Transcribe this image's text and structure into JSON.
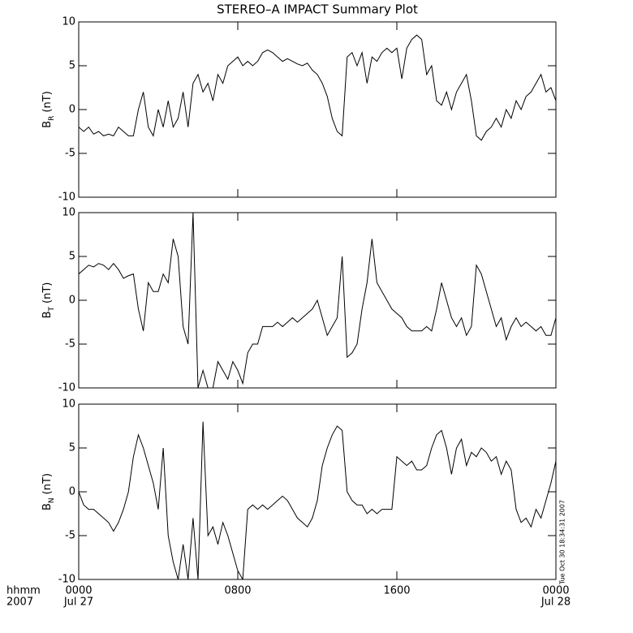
{
  "footer_timestamp": "Tue Oct 30 18:34:31 2007",
  "chart_data": [
    {
      "type": "line",
      "title": "STEREO–A IMPACT Summary Plot",
      "ylabel_parts": [
        "B",
        "R",
        "(nT)"
      ],
      "xlim": [
        0,
        24
      ],
      "ylim": [
        -10,
        10
      ],
      "yticks": [
        -10,
        -5,
        0,
        5,
        10
      ],
      "color": "#000000",
      "x": [
        0,
        0.25,
        0.5,
        0.75,
        1,
        1.25,
        1.5,
        1.75,
        2,
        2.25,
        2.5,
        2.75,
        3,
        3.25,
        3.5,
        3.75,
        4,
        4.25,
        4.5,
        4.75,
        5,
        5.25,
        5.5,
        5.75,
        6,
        6.25,
        6.5,
        6.75,
        7,
        7.25,
        7.5,
        7.75,
        8,
        8.25,
        8.5,
        8.75,
        9,
        9.25,
        9.5,
        9.75,
        10,
        10.25,
        10.5,
        10.75,
        11,
        11.25,
        11.5,
        11.75,
        12,
        12.25,
        12.5,
        12.75,
        13,
        13.25,
        13.5,
        13.75,
        14,
        14.25,
        14.5,
        14.75,
        15,
        15.25,
        15.5,
        15.75,
        16,
        16.25,
        16.5,
        16.75,
        17,
        17.25,
        17.5,
        17.75,
        18,
        18.25,
        18.5,
        18.75,
        19,
        19.25,
        19.5,
        19.75,
        20,
        20.25,
        20.5,
        20.75,
        21,
        21.25,
        21.5,
        21.75,
        22,
        22.25,
        22.5,
        22.75,
        23,
        23.25,
        23.5,
        23.75,
        24
      ],
      "values": [
        -2,
        -2.5,
        -2,
        -2.8,
        -2.5,
        -3,
        -2.8,
        -3,
        -2,
        -2.5,
        -3,
        -3,
        0,
        2,
        -2,
        -3,
        0,
        -2,
        1,
        -2,
        -1,
        2,
        -2,
        3,
        4,
        2,
        3,
        1,
        4,
        3,
        5,
        5.5,
        6,
        5,
        5.5,
        5,
        5.5,
        6.5,
        6.8,
        6.5,
        6,
        5.5,
        5.8,
        5.5,
        5.2,
        5,
        5.3,
        4.5,
        4,
        3,
        1.5,
        -1,
        -2.5,
        -3,
        6,
        6.5,
        5,
        6.5,
        3,
        6,
        5.5,
        6.5,
        7,
        6.5,
        7,
        3.5,
        7,
        8,
        8.5,
        8,
        4,
        5,
        1,
        0.5,
        2,
        0,
        2,
        3,
        4,
        1,
        -3,
        -3.5,
        -2.5,
        -2,
        -1,
        -2,
        0,
        -1,
        1,
        0,
        1.5,
        2,
        3,
        4,
        2,
        2.5,
        1
      ]
    },
    {
      "type": "line",
      "ylabel_parts": [
        "B",
        "T",
        "(nT)"
      ],
      "xlim": [
        0,
        24
      ],
      "ylim": [
        -10,
        10
      ],
      "yticks": [
        -10,
        -5,
        0,
        5,
        10
      ],
      "color": "#000000",
      "x": [
        0,
        0.25,
        0.5,
        0.75,
        1,
        1.25,
        1.5,
        1.75,
        2,
        2.25,
        2.5,
        2.75,
        3,
        3.25,
        3.5,
        3.75,
        4,
        4.25,
        4.5,
        4.75,
        5,
        5.25,
        5.5,
        5.75,
        6,
        6.25,
        6.5,
        6.75,
        7,
        7.25,
        7.5,
        7.75,
        8,
        8.25,
        8.5,
        8.75,
        9,
        9.25,
        9.5,
        9.75,
        10,
        10.25,
        10.5,
        10.75,
        11,
        11.25,
        11.5,
        11.75,
        12,
        12.25,
        12.5,
        12.75,
        13,
        13.25,
        13.5,
        13.75,
        14,
        14.25,
        14.5,
        14.75,
        15,
        15.25,
        15.5,
        15.75,
        16,
        16.25,
        16.5,
        16.75,
        17,
        17.25,
        17.5,
        17.75,
        18,
        18.25,
        18.5,
        18.75,
        19,
        19.25,
        19.5,
        19.75,
        20,
        20.25,
        20.5,
        20.75,
        21,
        21.25,
        21.5,
        21.75,
        22,
        22.25,
        22.5,
        22.75,
        23,
        23.25,
        23.5,
        23.75,
        24
      ],
      "values": [
        3,
        3.5,
        4,
        3.8,
        4.2,
        4,
        3.5,
        4.2,
        3.5,
        2.5,
        2.8,
        3,
        -1,
        -3.5,
        2,
        1,
        1,
        3,
        2,
        7,
        5,
        -3,
        -5,
        10,
        -10,
        -8,
        -10,
        -10,
        -7,
        -8,
        -9,
        -7,
        -8,
        -9.5,
        -6,
        -5,
        -5,
        -3,
        -3,
        -3,
        -2.5,
        -3,
        -2.5,
        -2,
        -2.5,
        -2,
        -1.5,
        -1,
        0,
        -2,
        -4,
        -3,
        -2,
        5,
        -6.5,
        -6,
        -5,
        -1,
        2,
        7,
        2,
        1,
        0,
        -1,
        -1.5,
        -2,
        -3,
        -3.5,
        -3.5,
        -3.5,
        -3,
        -3.5,
        -1,
        2,
        0,
        -2,
        -3,
        -2,
        -4,
        -3,
        4,
        3,
        1,
        -1,
        -3,
        -2,
        -4.5,
        -3,
        -2,
        -3,
        -2.5,
        -3,
        -3.5,
        -3,
        -4,
        -4,
        -2
      ]
    },
    {
      "type": "line",
      "ylabel_parts": [
        "B",
        "N",
        "(nT)"
      ],
      "xlim": [
        0,
        24
      ],
      "ylim": [
        -10,
        10
      ],
      "yticks": [
        -10,
        -5,
        0,
        5,
        10
      ],
      "xticks": [
        {
          "value": 0,
          "label": "0000"
        },
        {
          "value": 8,
          "label": "0800"
        },
        {
          "value": 16,
          "label": "1600"
        },
        {
          "value": 24,
          "label": "0000"
        }
      ],
      "x_date_labels": [
        {
          "value": 0,
          "label": "Jul 27"
        },
        {
          "value": 24,
          "label": "Jul 28"
        }
      ],
      "xlabel_lines": [
        "hhmm",
        "2007"
      ],
      "color": "#000000",
      "x": [
        0,
        0.25,
        0.5,
        0.75,
        1,
        1.25,
        1.5,
        1.75,
        2,
        2.25,
        2.5,
        2.75,
        3,
        3.25,
        3.5,
        3.75,
        4,
        4.25,
        4.5,
        4.75,
        5,
        5.25,
        5.5,
        5.75,
        6,
        6.25,
        6.5,
        6.75,
        7,
        7.25,
        7.5,
        7.75,
        8,
        8.25,
        8.5,
        8.75,
        9,
        9.25,
        9.5,
        9.75,
        10,
        10.25,
        10.5,
        10.75,
        11,
        11.25,
        11.5,
        11.75,
        12,
        12.25,
        12.5,
        12.75,
        13,
        13.25,
        13.5,
        13.75,
        14,
        14.25,
        14.5,
        14.75,
        15,
        15.25,
        15.5,
        15.75,
        16,
        16.25,
        16.5,
        16.75,
        17,
        17.25,
        17.5,
        17.75,
        18,
        18.25,
        18.5,
        18.75,
        19,
        19.25,
        19.5,
        19.75,
        20,
        20.25,
        20.5,
        20.75,
        21,
        21.25,
        21.5,
        21.75,
        22,
        22.25,
        22.5,
        22.75,
        23,
        23.25,
        23.5,
        23.75,
        24
      ],
      "values": [
        0,
        -1.5,
        -2,
        -2,
        -2.5,
        -3,
        -3.5,
        -4.5,
        -3.5,
        -2,
        0,
        4,
        6.5,
        5,
        3,
        1,
        -2,
        5,
        -5,
        -8,
        -10,
        -6,
        -10,
        -3,
        -10,
        8,
        -5,
        -4,
        -6,
        -3.5,
        -5,
        -7,
        -9,
        -10,
        -2,
        -1.5,
        -2,
        -1.5,
        -2,
        -1.5,
        -1,
        -0.5,
        -1,
        -2,
        -3,
        -3.5,
        -4,
        -3,
        -1,
        3,
        5,
        6.5,
        7.5,
        7,
        0,
        -1,
        -1.5,
        -1.5,
        -2.5,
        -2,
        -2.5,
        -2,
        -2,
        -2,
        4,
        3.5,
        3,
        3.5,
        2.5,
        2.5,
        3,
        5,
        6.5,
        7,
        5,
        2,
        5,
        6,
        3,
        4.5,
        4,
        5,
        4.5,
        3.5,
        4,
        2,
        3.5,
        2.5,
        -2,
        -3.5,
        -3,
        -4,
        -2,
        -3,
        -1,
        1,
        3.5
      ]
    }
  ]
}
